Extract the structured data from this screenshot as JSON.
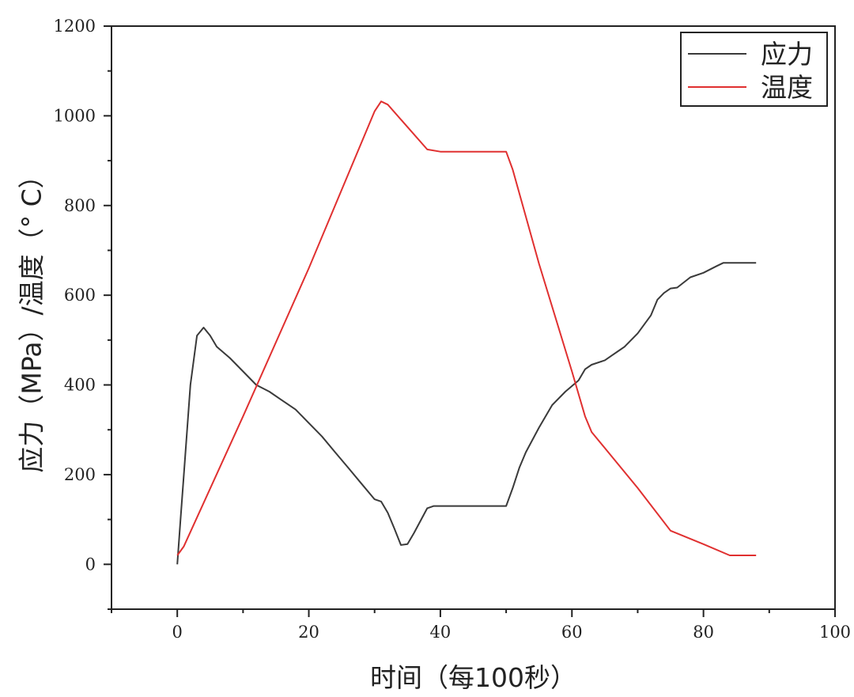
{
  "chart_data": {
    "type": "line",
    "title": "",
    "xlabel": "时间（每100秒）",
    "ylabel": "应力（MPa）/温度（° C）",
    "xlim": [
      -10,
      100
    ],
    "ylim": [
      -100,
      1200
    ],
    "xticks": [
      0,
      20,
      40,
      60,
      80,
      100
    ],
    "yticks": [
      0,
      200,
      400,
      600,
      800,
      1000,
      1200
    ],
    "grid": false,
    "legend_position": "top-right",
    "series": [
      {
        "name": "应力",
        "color": "#3a3a3a",
        "x": [
          0,
          0.5,
          1,
          2,
          3,
          4,
          5,
          6,
          8,
          10,
          12,
          14,
          16,
          18,
          20,
          22,
          24,
          26,
          28,
          30,
          31,
          32,
          33,
          34,
          35,
          36,
          38,
          39,
          40,
          42,
          45,
          48,
          50,
          51,
          52,
          53,
          55,
          57,
          59,
          61,
          62,
          63,
          65,
          66,
          67,
          68,
          70,
          72,
          73,
          74,
          75,
          76,
          78,
          80,
          82,
          83,
          84,
          86,
          88
        ],
        "y": [
          0,
          100,
          200,
          400,
          510,
          528,
          510,
          485,
          460,
          430,
          400,
          385,
          365,
          345,
          315,
          285,
          250,
          215,
          180,
          145,
          140,
          115,
          80,
          43,
          45,
          70,
          125,
          130,
          130,
          130,
          130,
          130,
          130,
          170,
          215,
          250,
          305,
          355,
          385,
          410,
          435,
          445,
          455,
          465,
          475,
          485,
          515,
          555,
          590,
          605,
          615,
          617,
          640,
          650,
          665,
          672,
          672,
          672,
          672
        ]
      },
      {
        "name": "温度",
        "color": "#e03030",
        "x": [
          0,
          1,
          10,
          20,
          30,
          31,
          32,
          38,
          40,
          45,
          50,
          51,
          55,
          60,
          62,
          63,
          70,
          75,
          80,
          84,
          88
        ],
        "y": [
          20,
          40,
          330,
          660,
          1010,
          1032,
          1025,
          925,
          920,
          920,
          920,
          880,
          670,
          430,
          330,
          295,
          170,
          75,
          45,
          20,
          20
        ]
      }
    ]
  }
}
